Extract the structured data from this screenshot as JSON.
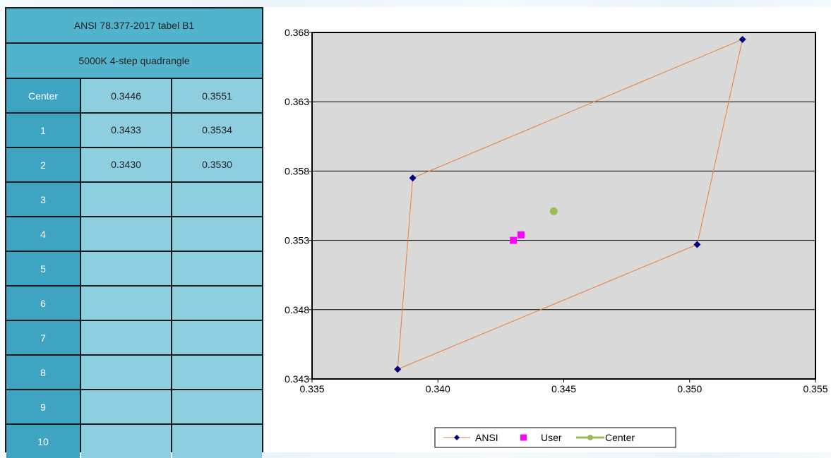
{
  "table": {
    "title": "ANSI 78.377-2017 tabel B1",
    "subtitle": "5000K 4-step quadrangle",
    "rows": [
      {
        "label": "Center",
        "x": "0.3446",
        "y": "0.3551"
      },
      {
        "label": "1",
        "x": "0.3433",
        "y": "0.3534"
      },
      {
        "label": "2",
        "x": "0.3430",
        "y": "0.3530"
      },
      {
        "label": "3",
        "x": "",
        "y": ""
      },
      {
        "label": "4",
        "x": "",
        "y": ""
      },
      {
        "label": "5",
        "x": "",
        "y": ""
      },
      {
        "label": "6",
        "x": "",
        "y": ""
      },
      {
        "label": "7",
        "x": "",
        "y": ""
      },
      {
        "label": "8",
        "x": "",
        "y": ""
      },
      {
        "label": "9",
        "x": "",
        "y": ""
      },
      {
        "label": "10",
        "x": "",
        "y": ""
      }
    ]
  },
  "chart_data": {
    "type": "scatter",
    "xlim": [
      0.335,
      0.355
    ],
    "ylim": [
      0.343,
      0.368
    ],
    "x_ticks": [
      "0.335",
      "0.340",
      "0.345",
      "0.350",
      "0.355"
    ],
    "y_ticks": [
      "0.343",
      "0.348",
      "0.353",
      "0.358",
      "0.363",
      "0.368"
    ],
    "grid": "horizontal",
    "legend_position": "bottom",
    "series": [
      {
        "name": "ANSI",
        "marker": "diamond",
        "color": "#000080",
        "line_color": "#e67e3a",
        "closed": true,
        "points": [
          [
            0.339,
            0.3575
          ],
          [
            0.3521,
            0.3675
          ],
          [
            0.3503,
            0.3527
          ],
          [
            0.3384,
            0.3437
          ]
        ]
      },
      {
        "name": "User",
        "marker": "square",
        "color": "#ff00ff",
        "points": [
          [
            0.343,
            0.353
          ],
          [
            0.3433,
            0.3534
          ]
        ]
      },
      {
        "name": "Center",
        "marker": "circle",
        "color": "#9bbb59",
        "points": [
          [
            0.3446,
            0.3551
          ]
        ]
      }
    ]
  }
}
